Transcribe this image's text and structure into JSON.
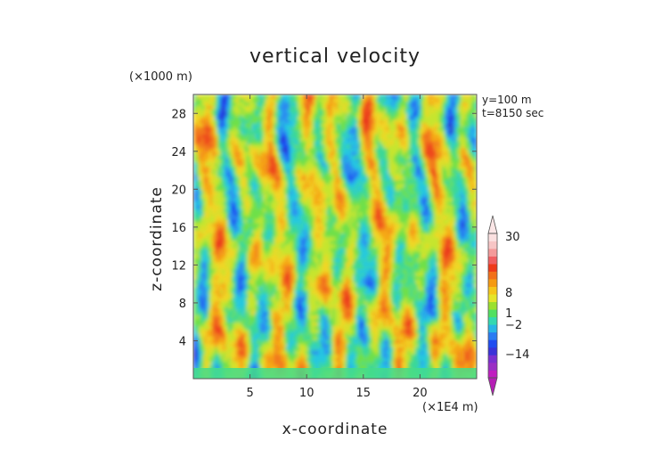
{
  "chart_data": {
    "type": "heatmap",
    "title": "vertical velocity",
    "xlabel": "x-coordinate",
    "ylabel": "z-coordinate",
    "x_unit": "(×1E4 m)",
    "y_unit": "(×1000 m)",
    "annotations": [
      "y=100 m",
      "t=8150 sec"
    ],
    "xlim": [
      0,
      25
    ],
    "ylim": [
      0,
      30
    ],
    "x_ticks": [
      5,
      10,
      15,
      20
    ],
    "y_ticks": [
      4,
      8,
      12,
      16,
      20,
      24,
      28
    ],
    "colorbar": {
      "labels": [
        {
          "value": 30,
          "text": "30"
        },
        {
          "value": 8,
          "text": "8"
        },
        {
          "value": 1,
          "text": "1"
        },
        {
          "value": -2,
          "text": "−2"
        },
        {
          "value": -14,
          "text": "−14"
        }
      ],
      "colors": [
        "#c01ec0",
        "#9a2fc4",
        "#7a2fd0",
        "#3a32d8",
        "#1f4cf0",
        "#2a7bf2",
        "#27b5e6",
        "#33d8b0",
        "#52e060",
        "#9be02f",
        "#e5e52a",
        "#f5c61a",
        "#f59a12",
        "#f2701a",
        "#ee3a1a",
        "#f05f62",
        "#f49a9a",
        "#f7c5c5",
        "#fbe0e0"
      ]
    }
  }
}
